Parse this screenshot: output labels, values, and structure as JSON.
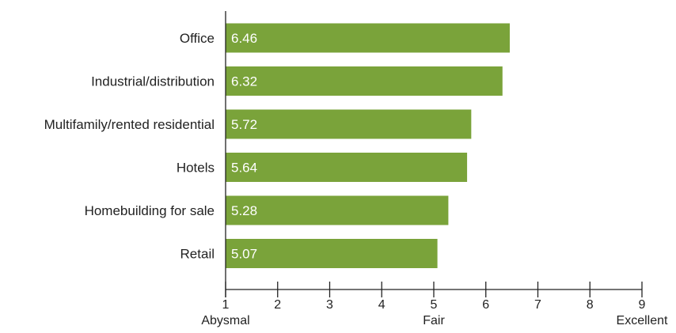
{
  "chart_data": {
    "type": "bar",
    "orientation": "horizontal",
    "categories": [
      "Office",
      "Industrial/distribution",
      "Multifamily/rented residential",
      "Hotels",
      "Homebuilding for sale",
      "Retail"
    ],
    "values": [
      6.46,
      6.32,
      5.72,
      5.64,
      5.28,
      5.07
    ],
    "value_labels": [
      "6.46",
      "6.32",
      "5.72",
      "5.64",
      "5.28",
      "5.07"
    ],
    "xlim": [
      1,
      9
    ],
    "x_ticks": [
      "1",
      "2",
      "3",
      "4",
      "5",
      "6",
      "7",
      "8",
      "9"
    ],
    "x_anchor_labels": [
      {
        "at": 1,
        "label": "Abysmal"
      },
      {
        "at": 5,
        "label": "Fair"
      },
      {
        "at": 9,
        "label": "Excellent"
      }
    ],
    "title": "",
    "xlabel": "",
    "ylabel": "",
    "grid": false,
    "bar_color": "#7aa33a",
    "axis_color": "#222222",
    "value_label_color": "#ffffff"
  }
}
